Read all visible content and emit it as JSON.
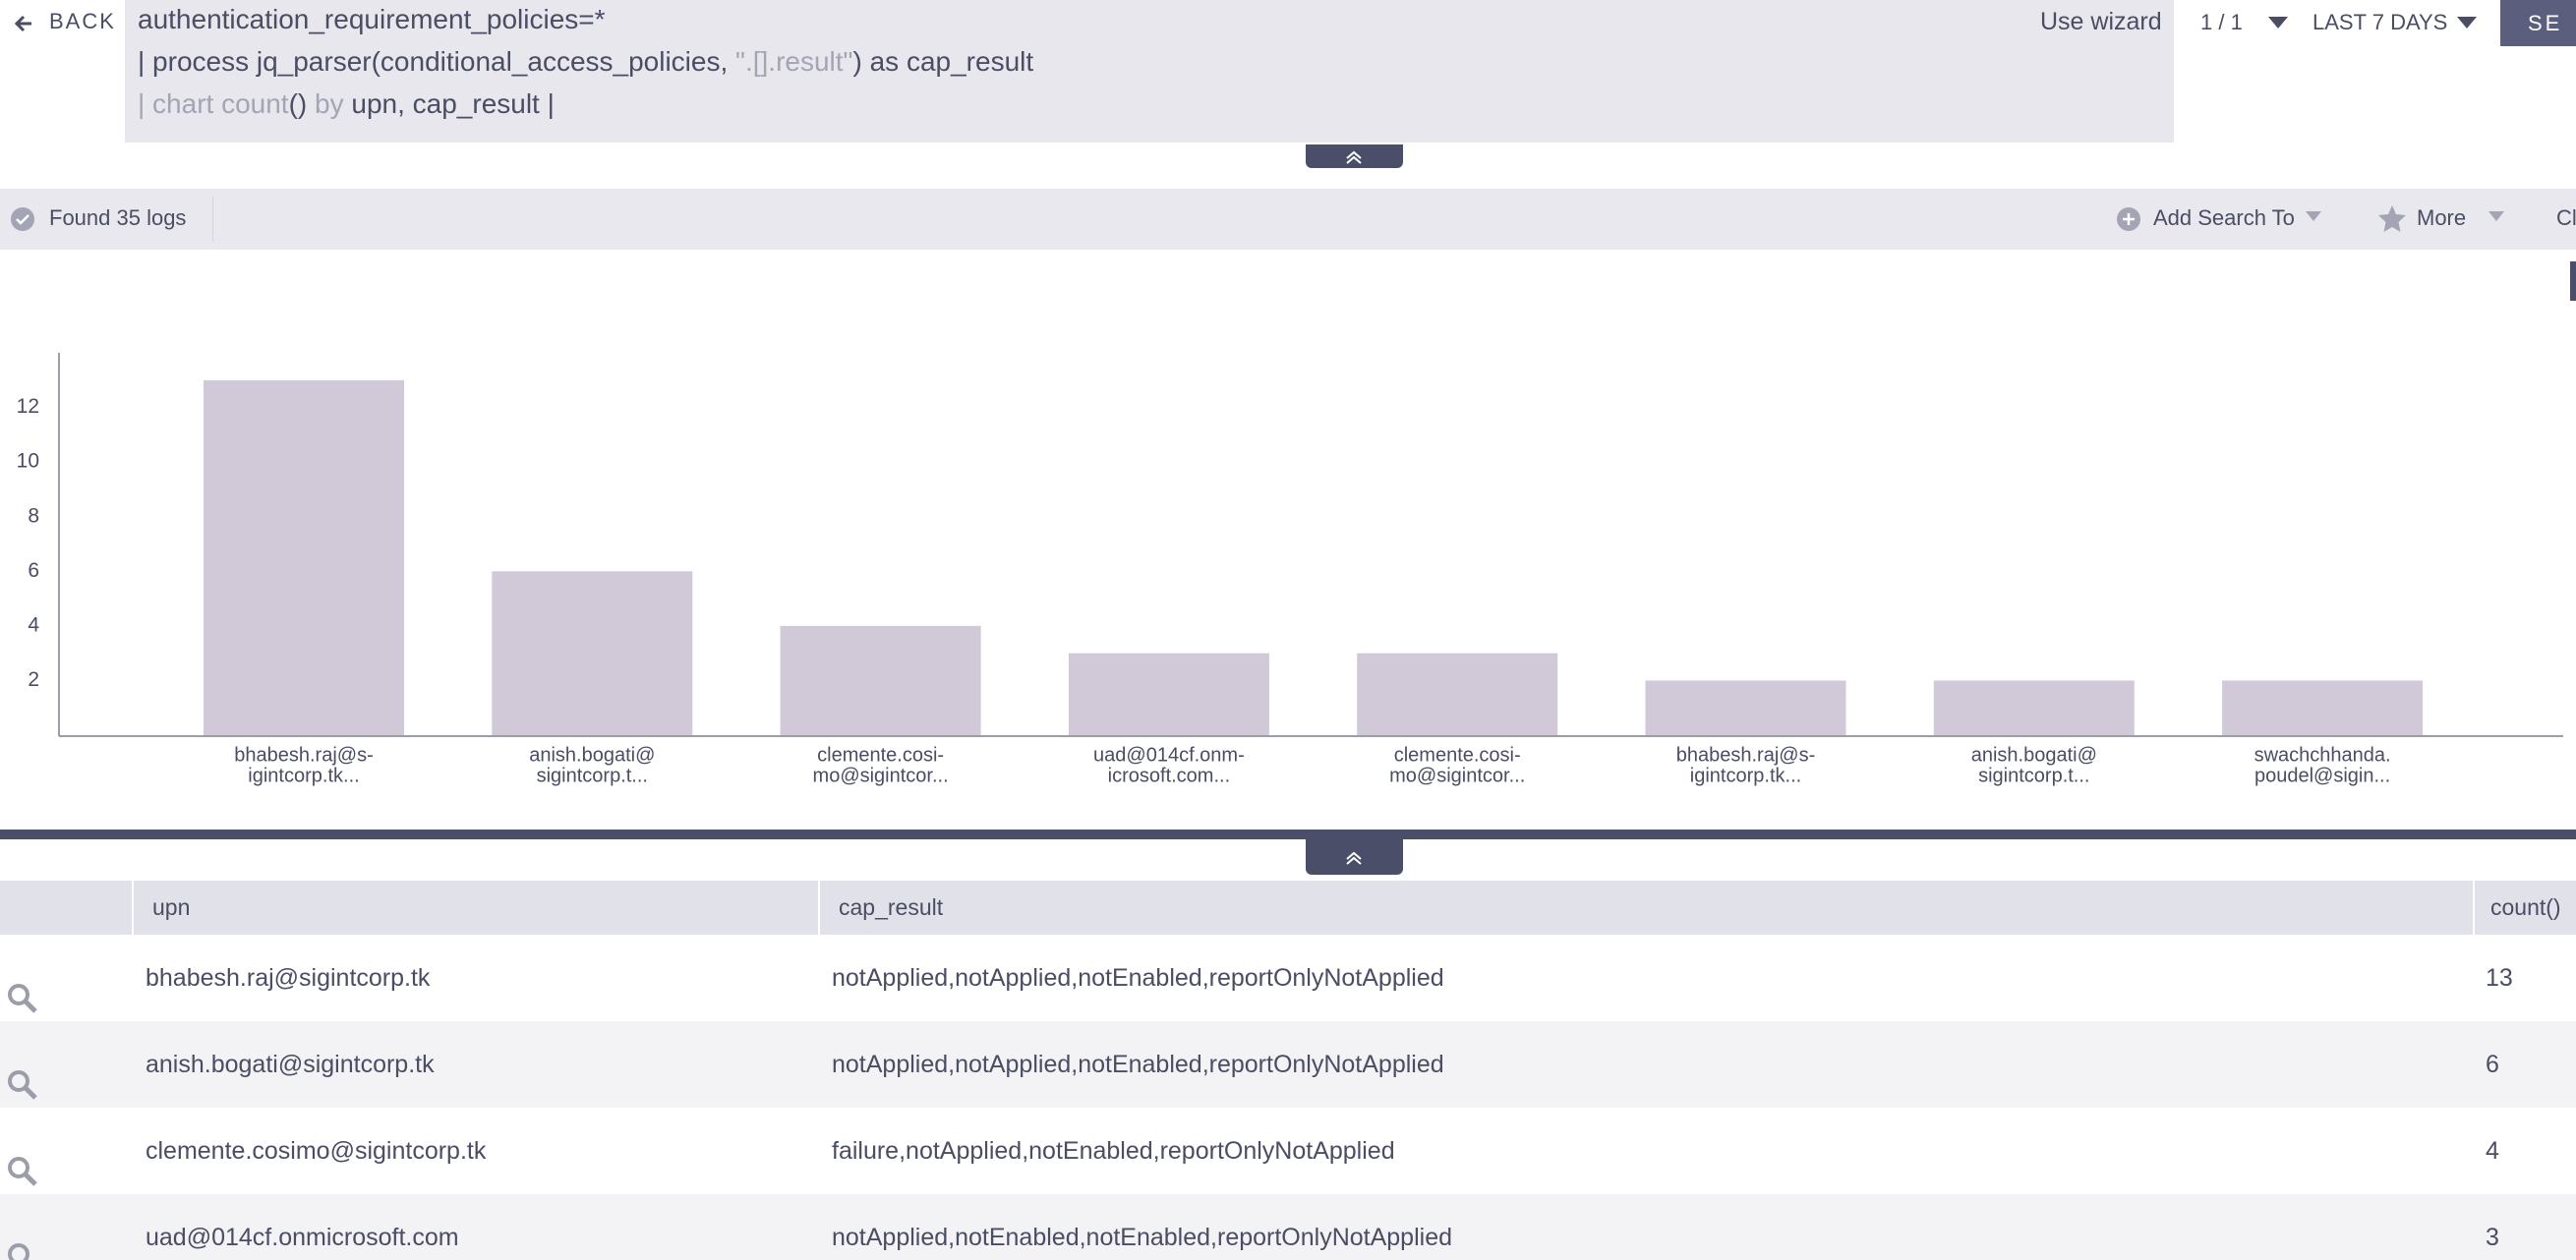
{
  "toolbar": {
    "back": "BACK",
    "query_lines": [
      [
        "authentication_requirement_policies=*"
      ],
      [
        "| process jq_parser(conditional_access_policies, ",
        "\".[].result\"",
        ") as cap_result"
      ],
      [
        "| chart count",
        "()",
        " by ",
        "upn, cap_result |"
      ]
    ],
    "use_wizard": "Use wizard",
    "pages": "1 / 1",
    "time_range": "LAST 7 DAYS",
    "search_button": "SE"
  },
  "results_bar": {
    "found": "Found 35 logs",
    "add_search_to": "Add Search To",
    "more": "More",
    "clipped": "Cl"
  },
  "chart_data": {
    "type": "bar",
    "categories": [
      [
        "bhabesh.raj@s-",
        "igintcorp.tk..."
      ],
      [
        "anish.bogati@",
        "sigintcorp.t..."
      ],
      [
        "clemente.cosi-",
        "mo@sigintcor..."
      ],
      [
        "uad@014cf.onm-",
        "icrosoft.com..."
      ],
      [
        "clemente.cosi-",
        "mo@sigintcor..."
      ],
      [
        "bhabesh.raj@s-",
        "igintcorp.tk..."
      ],
      [
        "anish.bogati@",
        "sigintcorp.t..."
      ],
      [
        "swachchhanda.",
        "poudel@sigin..."
      ]
    ],
    "values": [
      13,
      6,
      4,
      3,
      3,
      2,
      2,
      2
    ],
    "color": "#d1c9d7",
    "ylim": [
      0,
      14
    ],
    "yticks": [
      2,
      4,
      6,
      8,
      10,
      12
    ]
  },
  "table": {
    "columns": [
      "upn",
      "cap_result",
      "count()"
    ],
    "rows": [
      [
        "bhabesh.raj@sigintcorp.tk",
        "notApplied,notApplied,notEnabled,reportOnlyNotApplied",
        "13"
      ],
      [
        "anish.bogati@sigintcorp.tk",
        "notApplied,notApplied,notEnabled,reportOnlyNotApplied",
        "6"
      ],
      [
        "clemente.cosimo@sigintcorp.tk",
        "failure,notApplied,notEnabled,reportOnlyNotApplied",
        "4"
      ],
      [
        "uad@014cf.onmicrosoft.com",
        "notApplied,notEnabled,notEnabled,reportOnlyNotApplied",
        "3"
      ]
    ]
  }
}
